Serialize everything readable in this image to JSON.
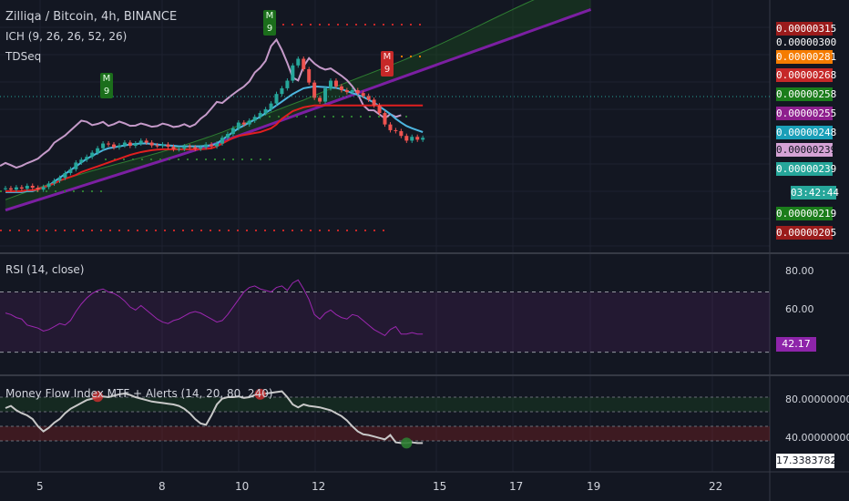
{
  "colors": {
    "background": "#131722",
    "rsi": "#9c27b0",
    "tenkan": "#4db6e0",
    "kijun": "#e01f1f",
    "lagging": "#c59ac9",
    "cloud": "#1e5a1e",
    "span_b": "#7b1fa2",
    "mfi": "#c8c8c8",
    "up_candle": "#26a69a",
    "down_candle": "#ef5350"
  },
  "header": {
    "title": "Zilliqa / Bitcoin, 4h, BINANCE",
    "ich_label": "ICH (9, 26, 26, 52, 26)",
    "tdseq_label": "TDSeq"
  },
  "price_axis_tags": [
    {
      "text": "0.00000315",
      "bg": "#9b1c1c"
    },
    {
      "text": "0.00000300",
      "bg": "#131722"
    },
    {
      "text": "0.00000281",
      "bg": "#f57c00"
    },
    {
      "text": "0.00000268",
      "bg": "#c62828"
    },
    {
      "text": "0.00000258",
      "bg": "#1b7d1b"
    },
    {
      "text": "0.00000255",
      "bg": "#8e1f8e"
    },
    {
      "text": "0.00000248",
      "bg": "#1a9fb8"
    },
    {
      "text": "0.00000239",
      "bg": "#d5a3d5"
    },
    {
      "text": "0.00000239",
      "bg": "#26a69a"
    },
    {
      "text": "03:42:44",
      "bg": "#26a69a"
    },
    {
      "text": "0.00000219",
      "bg": "#1b7d1b"
    },
    {
      "text": "0.00000205",
      "bg": "#9b1c1c"
    }
  ],
  "td_markers": {
    "m9_green_1": [
      "M",
      "9"
    ],
    "m9_green_2": [
      "M",
      "9"
    ],
    "m9_red": [
      "M",
      "9"
    ]
  },
  "rsi_panel": {
    "label": "RSI (14, close)",
    "ticks": [
      "80.00",
      "60.00"
    ],
    "current": "42.17",
    "current_bg": "#8e24aa"
  },
  "mfi_panel": {
    "label": "Money Flow Index MTF + Alerts (14, 20, 80, 240)",
    "ticks": [
      "80.00000000",
      "40.00000000"
    ],
    "current": "17.33837828"
  },
  "x_axis": {
    "ticks": [
      "5",
      "8",
      "10",
      "12",
      "15",
      "17",
      "19",
      "22"
    ]
  },
  "chart_data": [
    {
      "type": "line",
      "title": "Zilliqa / Bitcoin, 4h, BINANCE",
      "ylim": [
        2.05e-06,
        3.15e-06
      ],
      "price_levels": [
        3.15e-06,
        3e-06,
        2.81e-06,
        2.68e-06,
        2.58e-06,
        2.55e-06,
        2.48e-06,
        2.39e-06,
        2.39e-06,
        2.19e-06,
        2.05e-06
      ],
      "x": [
        0,
        1,
        2,
        3,
        4,
        5,
        6,
        7,
        8,
        9,
        10,
        11,
        12,
        13,
        14,
        15,
        16,
        17,
        18,
        19,
        20,
        21,
        22,
        23,
        24,
        25,
        26,
        27,
        28,
        29,
        30,
        31,
        32,
        33,
        34,
        35,
        36,
        37,
        38,
        39,
        40,
        41,
        42,
        43,
        44,
        45,
        46,
        47,
        48,
        49,
        50,
        51,
        52,
        53,
        54,
        55,
        56,
        57,
        58,
        59,
        60,
        61,
        62,
        63,
        64,
        65,
        66,
        67,
        68,
        69,
        70,
        71,
        72,
        73,
        74,
        75,
        76,
        77
      ],
      "candles_close": [
        2.305e-06,
        2.298e-06,
        2.31e-06,
        2.303e-06,
        2.318e-06,
        2.308e-06,
        2.298e-06,
        2.312e-06,
        2.33e-06,
        2.345e-06,
        2.36e-06,
        2.385e-06,
        2.405e-06,
        2.44e-06,
        2.455e-06,
        2.47e-06,
        2.492e-06,
        2.515e-06,
        2.54e-06,
        2.535e-06,
        2.52e-06,
        2.53e-06,
        2.545e-06,
        2.528e-06,
        2.54e-06,
        2.555e-06,
        2.545e-06,
        2.53e-06,
        2.528e-06,
        2.535e-06,
        2.523e-06,
        2.51e-06,
        2.512e-06,
        2.525e-06,
        2.52e-06,
        2.512e-06,
        2.52e-06,
        2.535e-06,
        2.525e-06,
        2.54e-06,
        2.57e-06,
        2.59e-06,
        2.62e-06,
        2.65e-06,
        2.64e-06,
        2.66e-06,
        2.68e-06,
        2.7e-06,
        2.72e-06,
        2.75e-06,
        2.8e-06,
        2.83e-06,
        2.87e-06,
        2.95e-06,
        2.985e-06,
        2.93e-06,
        2.86e-06,
        2.78e-06,
        2.76e-06,
        2.83e-06,
        2.87e-06,
        2.84e-06,
        2.82e-06,
        2.81e-06,
        2.82e-06,
        2.805e-06,
        2.79e-06,
        2.77e-06,
        2.74e-06,
        2.7e-06,
        2.64e-06,
        2.61e-06,
        2.605e-06,
        2.58e-06,
        2.555e-06,
        2.575e-06,
        2.56e-06,
        2.57e-06
      ],
      "series": [
        {
          "name": "",
          "role": "tenkan",
          "values": [
            2.285e-06,
            2.285e-06,
            2.285e-06,
            2.285e-06,
            2.29e-06,
            2.29e-06,
            2.3e-06,
            2.31e-06,
            2.32e-06,
            2.34e-06,
            2.36e-06,
            2.38e-06,
            2.4e-06,
            2.42e-06,
            2.44e-06,
            2.46e-06,
            2.475e-06,
            2.49e-06,
            2.505e-06,
            2.515e-06,
            2.52e-06,
            2.525e-06,
            2.53e-06,
            2.535e-06,
            2.538e-06,
            2.54e-06,
            2.54e-06,
            2.538e-06,
            2.535e-06,
            2.532e-06,
            2.53e-06,
            2.528e-06,
            2.525e-06,
            2.525e-06,
            2.525e-06,
            2.525e-06,
            2.525e-06,
            2.528e-06,
            2.53e-06,
            2.54e-06,
            2.56e-06,
            2.58e-06,
            2.6e-06,
            2.62e-06,
            2.635e-06,
            2.65e-06,
            2.665e-06,
            2.68e-06,
            2.7e-06,
            2.72e-06,
            2.74e-06,
            2.76e-06,
            2.78e-06,
            2.8e-06,
            2.815e-06,
            2.83e-06,
            2.835e-06,
            2.84e-06,
            2.838e-06,
            2.836e-06,
            2.834e-06,
            2.832e-06,
            2.825e-06,
            2.815e-06,
            2.805e-06,
            2.795e-06,
            2.785e-06,
            2.77e-06,
            2.755e-06,
            2.735e-06,
            2.715e-06,
            2.695e-06,
            2.67e-06,
            2.65e-06,
            2.632e-06,
            2.62e-06,
            2.61e-06,
            2.6e-06
          ]
        },
        {
          "name": "",
          "role": "kijun",
          "values": [
            2.29e-06,
            2.29e-06,
            2.29e-06,
            2.29e-06,
            2.295e-06,
            2.295e-06,
            2.3e-06,
            2.31e-06,
            2.32e-06,
            2.33e-06,
            2.345e-06,
            2.355e-06,
            2.365e-06,
            2.375e-06,
            2.39e-06,
            2.4e-06,
            2.41e-06,
            2.42e-06,
            2.43e-06,
            2.44e-06,
            2.45e-06,
            2.46e-06,
            2.47e-06,
            2.48e-06,
            2.488e-06,
            2.495e-06,
            2.5e-06,
            2.505e-06,
            2.508e-06,
            2.51e-06,
            2.51e-06,
            2.51e-06,
            2.51e-06,
            2.51e-06,
            2.51e-06,
            2.51e-06,
            2.51e-06,
            2.512e-06,
            2.515e-06,
            2.525e-06,
            2.54e-06,
            2.555e-06,
            2.57e-06,
            2.58e-06,
            2.585e-06,
            2.59e-06,
            2.595e-06,
            2.6e-06,
            2.61e-06,
            2.62e-06,
            2.64e-06,
            2.67e-06,
            2.69e-06,
            2.71e-06,
            2.72e-06,
            2.73e-06,
            2.735e-06,
            2.74e-06,
            2.74e-06,
            2.74e-06,
            2.74e-06,
            2.74e-06,
            2.74e-06,
            2.74e-06,
            2.74e-06,
            2.74e-06,
            2.74e-06,
            2.74e-06,
            2.74e-06,
            2.74e-06,
            2.74e-06,
            2.74e-06,
            2.74e-06,
            2.74e-06,
            2.74e-06,
            2.74e-06,
            2.74e-06,
            2.74e-06
          ]
        }
      ]
    },
    {
      "type": "line",
      "title": "RSI (14, close)",
      "ylim": [
        0,
        100
      ],
      "series": [
        {
          "name": "",
          "values": [
            56,
            55,
            53,
            52,
            48,
            47,
            46,
            44,
            45,
            47,
            49,
            48,
            51,
            57,
            62,
            66,
            69,
            71,
            72,
            70,
            69,
            67,
            64,
            60,
            58,
            61,
            58,
            55,
            52,
            50,
            49,
            51,
            52,
            54,
            56,
            57,
            56,
            54,
            52,
            50,
            51,
            55,
            60,
            65,
            70,
            73,
            74,
            72,
            71,
            70,
            73,
            74,
            71,
            76,
            78,
            72,
            65,
            55,
            52,
            56,
            58,
            55,
            53,
            52,
            55,
            54,
            51,
            48,
            45,
            43,
            41,
            45,
            47,
            42,
            42,
            43,
            42,
            42
          ]
        }
      ]
    },
    {
      "type": "line",
      "title": "Money Flow Index MTF + Alerts (14, 20, 80, 240)",
      "ylim": [
        0,
        100
      ],
      "series": [
        {
          "name": "",
          "values": [
            65,
            68,
            62,
            58,
            55,
            50,
            40,
            33,
            38,
            45,
            50,
            58,
            64,
            68,
            72,
            76,
            78,
            80,
            81,
            80,
            82,
            84,
            85,
            83,
            80,
            78,
            76,
            74,
            73,
            72,
            71,
            70,
            68,
            64,
            58,
            50,
            44,
            42,
            55,
            70,
            78,
            80,
            80,
            81,
            79,
            80,
            83,
            84,
            85,
            86,
            87,
            88,
            80,
            70,
            66,
            70,
            68,
            67,
            66,
            64,
            62,
            58,
            54,
            48,
            40,
            33,
            29,
            28,
            26,
            24,
            22,
            28,
            18,
            17,
            17,
            18,
            17,
            17
          ]
        }
      ]
    }
  ]
}
